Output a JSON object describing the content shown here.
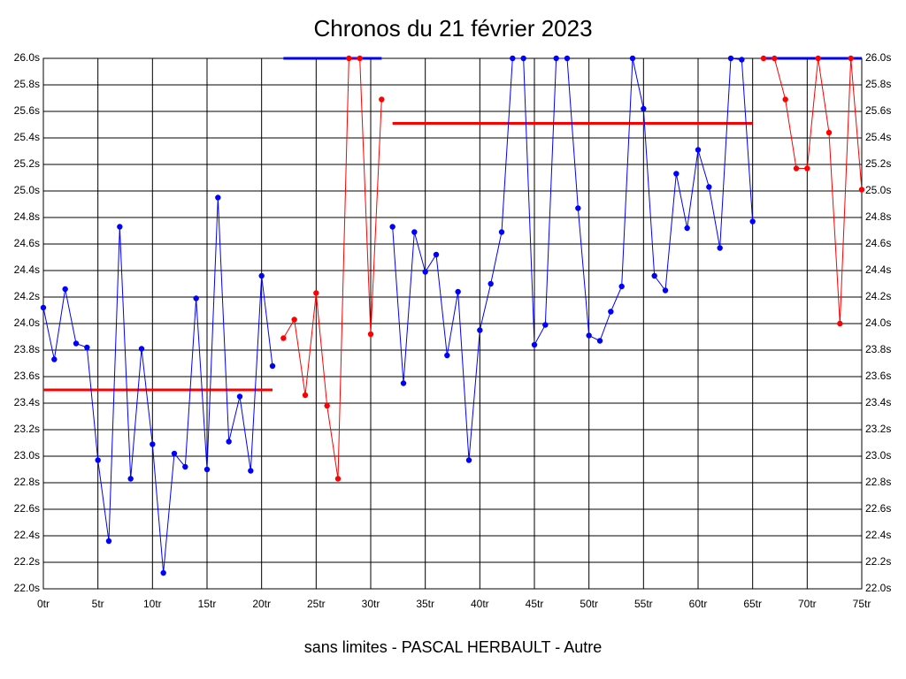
{
  "chart_data": {
    "type": "line",
    "title": "Chronos du 21 février 2023",
    "footer": "sans limites - PASCAL HERBAULT - Autre",
    "xlim": [
      0,
      75
    ],
    "ylim": [
      22,
      26
    ],
    "grid": true,
    "xticks": [
      {
        "value": 0,
        "label": "0tr"
      },
      {
        "value": 5,
        "label": "5tr"
      },
      {
        "value": 10,
        "label": "10tr"
      },
      {
        "value": 15,
        "label": "15tr"
      },
      {
        "value": 20,
        "label": "20tr"
      },
      {
        "value": 25,
        "label": "25tr"
      },
      {
        "value": 30,
        "label": "30tr"
      },
      {
        "value": 35,
        "label": "35tr"
      },
      {
        "value": 40,
        "label": "40tr"
      },
      {
        "value": 45,
        "label": "45tr"
      },
      {
        "value": 50,
        "label": "50tr"
      },
      {
        "value": 55,
        "label": "55tr"
      },
      {
        "value": 60,
        "label": "60tr"
      },
      {
        "value": 65,
        "label": "65tr"
      },
      {
        "value": 70,
        "label": "70tr"
      },
      {
        "value": 75,
        "label": "75tr"
      }
    ],
    "yticks": [
      {
        "value": 22.0,
        "label": "22.0s"
      },
      {
        "value": 22.2,
        "label": "22.2s"
      },
      {
        "value": 22.4,
        "label": "22.4s"
      },
      {
        "value": 22.6,
        "label": "22.6s"
      },
      {
        "value": 22.8,
        "label": "22.8s"
      },
      {
        "value": 23.0,
        "label": "23.0s"
      },
      {
        "value": 23.2,
        "label": "23.2s"
      },
      {
        "value": 23.4,
        "label": "23.4s"
      },
      {
        "value": 23.6,
        "label": "23.6s"
      },
      {
        "value": 23.8,
        "label": "23.8s"
      },
      {
        "value": 24.0,
        "label": "24.0s"
      },
      {
        "value": 24.2,
        "label": "24.2s"
      },
      {
        "value": 24.4,
        "label": "24.4s"
      },
      {
        "value": 24.6,
        "label": "24.6s"
      },
      {
        "value": 24.8,
        "label": "24.8s"
      },
      {
        "value": 25.0,
        "label": "25.0s"
      },
      {
        "value": 25.2,
        "label": "25.2s"
      },
      {
        "value": 25.4,
        "label": "25.4s"
      },
      {
        "value": 25.6,
        "label": "25.6s"
      },
      {
        "value": 25.8,
        "label": "25.8s"
      },
      {
        "value": 26.0,
        "label": "26.0s"
      }
    ],
    "series": [
      {
        "color": "#0000ff",
        "average": 23.5,
        "average_color": "#ff0000",
        "x": [
          0,
          1,
          2,
          3,
          4,
          5,
          6,
          7,
          8,
          9,
          10,
          11,
          12,
          13,
          14,
          15,
          16,
          17,
          18,
          19,
          20,
          21
        ],
        "values": [
          24.12,
          23.73,
          24.26,
          23.85,
          23.82,
          22.97,
          22.36,
          24.73,
          22.83,
          23.81,
          23.09,
          22.12,
          23.02,
          22.92,
          24.19,
          22.9,
          24.95,
          23.11,
          23.45,
          22.89,
          24.36,
          23.68
        ]
      },
      {
        "color": "#ff0000",
        "average": 26.0,
        "average_color": "#0000ff",
        "x": [
          22,
          23,
          24,
          25,
          26,
          27,
          28,
          29,
          30,
          31
        ],
        "values": [
          23.89,
          24.03,
          23.46,
          24.23,
          23.38,
          22.83,
          26.0,
          26.0,
          23.92,
          25.69
        ]
      },
      {
        "color": "#0000ff",
        "average": 25.51,
        "average_color": "#ff0000",
        "x": [
          32,
          33,
          34,
          35,
          36,
          37,
          38,
          39,
          40,
          41,
          42,
          43,
          44,
          45,
          46,
          47,
          48,
          49,
          50,
          51,
          52,
          53,
          54,
          55,
          56,
          57,
          58,
          59,
          60,
          61,
          62,
          63,
          64,
          65
        ],
        "values": [
          24.73,
          23.55,
          24.69,
          24.39,
          24.52,
          23.76,
          24.24,
          22.97,
          23.95,
          24.3,
          24.69,
          26.0,
          26.0,
          23.84,
          23.99,
          26.0,
          26.0,
          24.87,
          23.91,
          23.87,
          24.09,
          24.28,
          26.0,
          25.62,
          24.36,
          24.25,
          25.13,
          24.72,
          25.31,
          25.03,
          24.57,
          26.0,
          25.99,
          24.77
        ]
      },
      {
        "color": "#ff0000",
        "average": 26.0,
        "average_color": "#0000ff",
        "x": [
          66,
          67,
          68,
          69,
          70,
          71,
          72,
          73,
          74,
          75
        ],
        "values": [
          26.0,
          26.0,
          25.69,
          25.17,
          25.17,
          26.0,
          25.44,
          24.0,
          26.0,
          25.01
        ]
      }
    ]
  }
}
